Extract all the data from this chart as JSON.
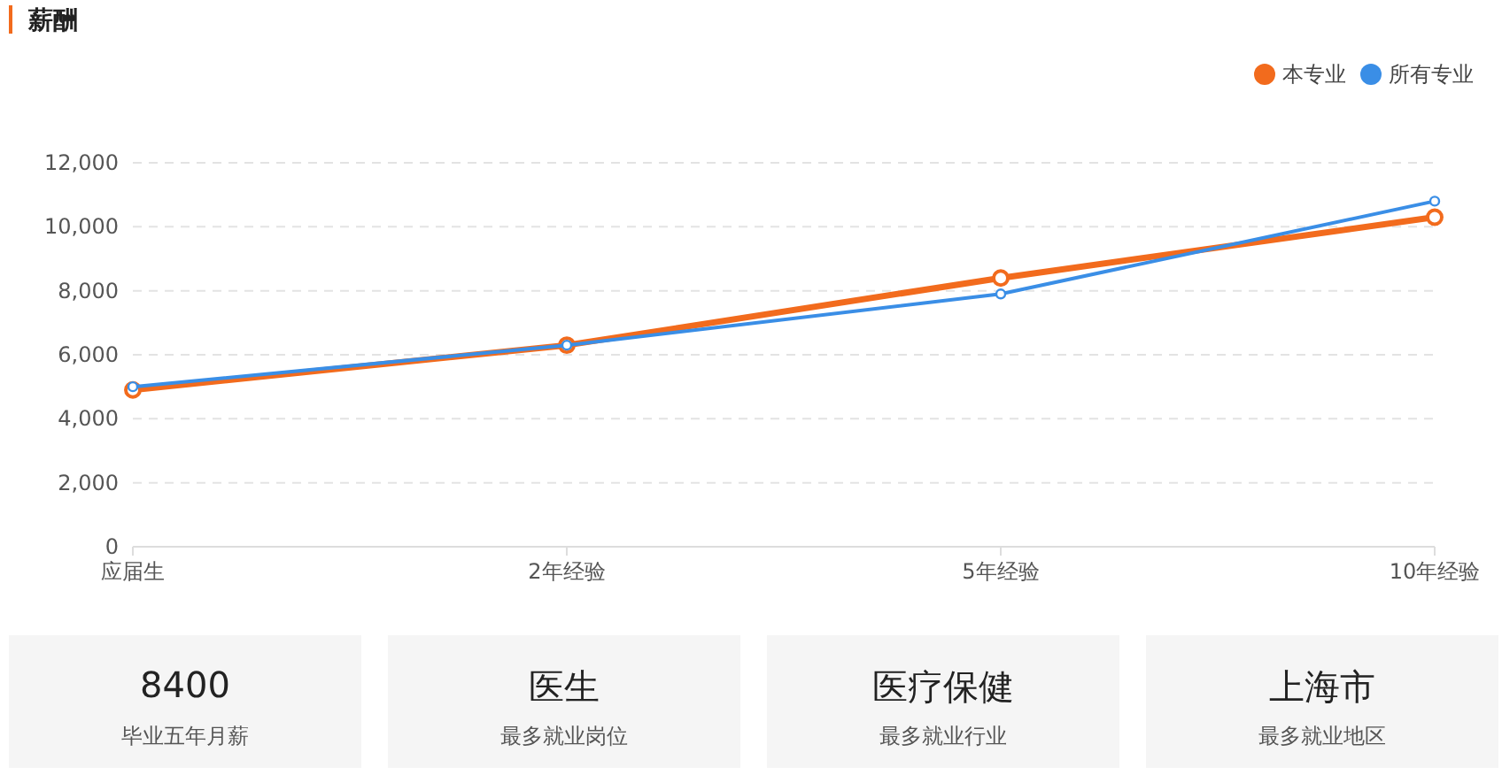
{
  "chart_data": [
    {
      "type": "line",
      "title": "薪酬",
      "categories": [
        "应届生",
        "2年经验",
        "5年经验",
        "10年经验"
      ],
      "series": [
        {
          "name": "本专业",
          "color": "#f26b1d",
          "values": [
            4900,
            6300,
            8400,
            10300
          ]
        },
        {
          "name": "所有专业",
          "color": "#3a8ee6",
          "values": [
            5000,
            6300,
            7900,
            10800
          ]
        }
      ],
      "ylim": [
        0,
        12000
      ],
      "yticks": [
        0,
        {
          "value": 2000,
          "label": "2,000"
        },
        {
          "value": 4000,
          "label": "4,000"
        },
        {
          "value": 6000,
          "label": "6,000"
        },
        {
          "value": 8000,
          "label": "8,000"
        },
        {
          "value": 10000,
          "label": "10,000"
        },
        {
          "value": 12000,
          "label": "12,000"
        }
      ],
      "grid": "y",
      "legend": "top right",
      "marker": "circle",
      "line_style": "solid"
    },
    {
      "type": "other",
      "annotations": [
        "8400",
        "毕业五年月薪",
        "医生",
        "最多就业岗位",
        "医疗保健",
        "最多就业行业",
        "上海市",
        "最多就业地区"
      ]
    }
  ]
}
